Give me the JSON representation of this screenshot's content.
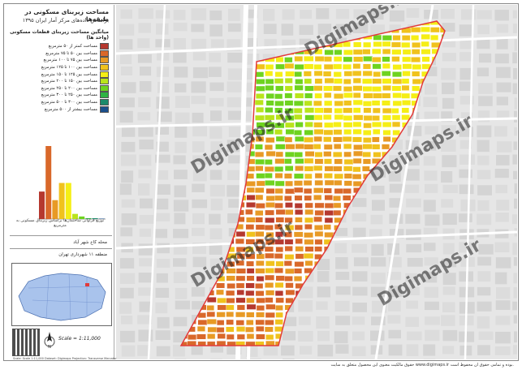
{
  "title": {
    "line1": "مساحت زیربنای مسکونی در طبقه‌ها",
    "line2": "براساس داده‌های مرکز آمار ایران ۱۳۹۵"
  },
  "legend": {
    "header": "میانگین مساحت زیربنای قطعات مسکونی (واحد ها)",
    "items": [
      {
        "label": "مساحت کمتر از ۵۰ مترمربع",
        "color": "#b5382f"
      },
      {
        "label": "مساحت بین ۵۰ تا ۷۵ مترمربع",
        "color": "#d9682a"
      },
      {
        "label": "مساحت بین ۷۵ تا ۱۰۰ مترمربع",
        "color": "#e89a25"
      },
      {
        "label": "مساحت بین ۱۰۰ تا ۱۲۵ مترمربع",
        "color": "#f0c21d"
      },
      {
        "label": "مساحت بین ۱۲۵ تا ۱۵۰ مترمربع",
        "color": "#f5ee16"
      },
      {
        "label": "مساحت بین ۱۵۰ تا ۲۰۰ مترمربع",
        "color": "#b9e41b"
      },
      {
        "label": "مساحت بین ۲۰۰ تا ۲۵۰ مترمربع",
        "color": "#6ed31f"
      },
      {
        "label": "مساحت بین ۲۵۰ تا ۳۰۰ مترمربع",
        "color": "#2fb343"
      },
      {
        "label": "مساحت بین ۳۰۰ تا ۵۰۰ مترمربع",
        "color": "#1b8a6b"
      },
      {
        "label": "مساحت بیشتر از ۵۰۰ مترمربع",
        "color": "#1a4f8c"
      }
    ]
  },
  "chart_data": {
    "type": "bar",
    "categories": [
      "<50",
      "50-75",
      "75-100",
      "100-125",
      "125-150",
      "150-200",
      "200-250",
      "250-300",
      "300-500",
      ">500"
    ],
    "values": [
      32,
      85,
      22,
      42,
      42,
      6,
      3,
      1,
      1,
      0.5
    ],
    "colors": [
      "#b5382f",
      "#d9682a",
      "#e89a25",
      "#f0c21d",
      "#f5ee16",
      "#b9e41b",
      "#6ed31f",
      "#2fb343",
      "#1b8a6b",
      "#1a4f8c"
    ],
    "caption": "توزیع فراوانی ساختمان‌ها براساس زیربنای مسکونی به مترمربع"
  },
  "info": {
    "neighborhood": "محله کاخ شهر آباد",
    "district": "منطقه ۱۱ شهرداری تهران"
  },
  "scale": "Scale = 1:11,000",
  "north_label": "N",
  "credit": "Scale: Scale 1:11,000 Dataset: Digimaps Projection: Transverse Mercator",
  "footer": "حقوق مالکیت معنوی این محصول متعلق به سایت www.digimaps.ir بوده و تمامی حقوق آن محفوظ است.",
  "watermark": "Digimaps.ir",
  "colors": {
    "boundary": "#e23a3a",
    "road": "#ffffff",
    "base": "#e7e7e7",
    "block": "#d2d2d2"
  }
}
